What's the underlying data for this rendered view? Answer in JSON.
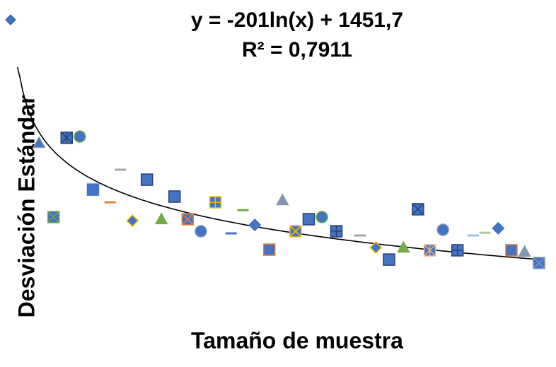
{
  "chart_data": {
    "type": "scatter",
    "title": "y = -201ln(x) + 1451,7",
    "subtitle": "R² = 0,7911",
    "x_label": "Tamaño de muestra",
    "y_label": "Desviación Estándar",
    "trendline": {
      "slope": -201,
      "intercept": 1451.7,
      "color": "#000000"
    },
    "xlim": [
      0,
      40
    ],
    "ylim": [
      600,
      1620
    ],
    "series": [
      {
        "color": "#4472c4",
        "x": [
          2.0,
          4.1,
          5.1,
          3.1,
          6.1,
          8.2,
          7.4,
          10.2,
          9.1,
          11.3,
          12.3,
          13.3,
          14.3,
          15.4,
          16.6,
          17.5,
          18.4,
          19.5,
          20.5,
          21.5,
          22.5,
          23.5,
          24.6,
          26.4,
          27.6,
          28.6,
          29.7,
          30.8,
          31.7,
          32.7,
          33.8,
          35.0,
          35.9,
          36.9,
          37.9,
          38.9,
          40.0
        ],
        "values": [
          1262,
          1286,
          1292,
          911,
          1041,
          1135,
          981,
          1088,
          894,
          901,
          1008,
          901,
          844,
          981,
          834,
          944,
          874,
          757,
          991,
          844,
          901,
          911,
          844,
          824,
          767,
          710,
          767,
          948,
          754,
          851,
          754,
          824,
          837,
          858,
          754,
          747,
          694
        ],
        "markers": [
          "triangle",
          "square-star",
          "circle",
          "square-x",
          "square",
          "dash",
          "dash",
          "square",
          "diamond",
          "triangle",
          "square",
          "square-x",
          "circle",
          "square-plus",
          "dash",
          "dash",
          "diamond",
          "square",
          "triangle",
          "square-x",
          "square",
          "circle",
          "square-plus",
          "dash",
          "diamond",
          "square",
          "triangle",
          "square-x",
          "square-star",
          "circle",
          "square-plus",
          "dash",
          "dash",
          "diamond",
          "square",
          "triangle",
          "square-x"
        ],
        "marker_colors": [
          "#4472c4",
          "#4472c4",
          "#4472c4",
          "#4472c4",
          "#4472c4",
          "#a5a5a5",
          "#ed7d31",
          "#4472c4",
          "#4472c4",
          "#70ad47",
          "#4472c4",
          "#4472c4",
          "#4472c4",
          "#4472c4",
          "#4472c4",
          "#70ad47",
          "#4472c4",
          "#4472c4",
          "#8497b0",
          "#4472c4",
          "#4472c4",
          "#4472c4",
          "#4472c4",
          "#a5a5a5",
          "#4472c4",
          "#4472c4",
          "#70ad47",
          "#4472c4",
          "#4472c4",
          "#4472c4",
          "#4472c4",
          "#9dc3e6",
          "#a9d18e",
          "#4472c4",
          "#4472c4",
          "#8497b0",
          "#4472c4"
        ],
        "edge_colors": [
          "#8497b0",
          "#264478",
          "#70ad47",
          "#70ad47",
          "#4472c4",
          "#a5a5a5",
          "#ed7d31",
          "#264478",
          "#ffc000",
          "#70ad47",
          "#264478",
          "#ed7d31",
          "#8497b0",
          "#ffc000",
          "#4472c4",
          "#70ad47",
          "#4472c4",
          "#ed7d31",
          "#8497b0",
          "#ffc000",
          "#264478",
          "#70ad47",
          "#264478",
          "#a5a5a5",
          "#ffc000",
          "#264478",
          "#70ad47",
          "#264478",
          "#f4b183",
          "#8497b0",
          "#264478",
          "#9dc3e6",
          "#a9d18e",
          "#4472c4",
          "#ed7d31",
          "#8497b0",
          "#8497b0"
        ]
      }
    ]
  }
}
